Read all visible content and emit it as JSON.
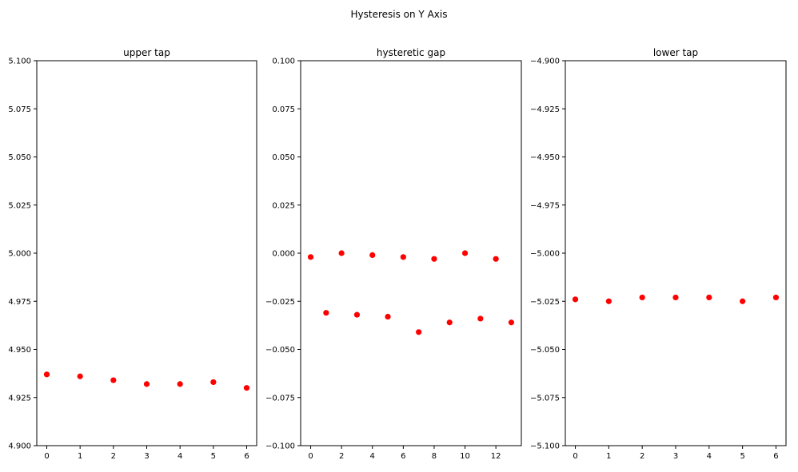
{
  "figure": {
    "suptitle": "Hysteresis on Y Axis"
  },
  "chart_data": [
    {
      "type": "scatter",
      "title": "upper tap",
      "xlabel": "",
      "ylabel": "",
      "marker_color": "#ff0000",
      "xlim": [
        -0.3,
        6.3
      ],
      "ylim": [
        4.9,
        5.1
      ],
      "xticks": [
        0,
        1,
        2,
        3,
        4,
        5,
        6
      ],
      "xtick_labels": [
        "0",
        "1",
        "2",
        "3",
        "4",
        "5",
        "6"
      ],
      "yticks": [
        4.9,
        4.925,
        4.95,
        4.975,
        5.0,
        5.025,
        5.05,
        5.075,
        5.1
      ],
      "ytick_labels": [
        "4.900",
        "4.925",
        "4.950",
        "4.975",
        "5.000",
        "5.025",
        "5.050",
        "5.075",
        "5.100"
      ],
      "grid": false,
      "x": [
        0,
        1,
        2,
        3,
        4,
        5,
        6
      ],
      "y": [
        4.937,
        4.936,
        4.934,
        4.932,
        4.932,
        4.933,
        4.93
      ]
    },
    {
      "type": "scatter",
      "title": "hysteretic gap",
      "xlabel": "",
      "ylabel": "",
      "marker_color": "#ff0000",
      "xlim": [
        -0.65,
        13.65
      ],
      "ylim": [
        -0.1,
        0.1
      ],
      "xticks": [
        0,
        2,
        4,
        6,
        8,
        10,
        12
      ],
      "xtick_labels": [
        "0",
        "2",
        "4",
        "6",
        "8",
        "10",
        "12"
      ],
      "yticks": [
        -0.1,
        -0.075,
        -0.05,
        -0.025,
        0.0,
        0.025,
        0.05,
        0.075,
        0.1
      ],
      "ytick_labels": [
        "−0.100",
        "−0.075",
        "−0.050",
        "−0.025",
        "0.000",
        "0.025",
        "0.050",
        "0.075",
        "0.100"
      ],
      "grid": false,
      "x": [
        0,
        1,
        2,
        3,
        4,
        5,
        6,
        7,
        8,
        9,
        10,
        11,
        12,
        13
      ],
      "y": [
        -0.002,
        -0.031,
        0.0,
        -0.032,
        -0.001,
        -0.033,
        -0.002,
        -0.041,
        -0.003,
        -0.036,
        0.0,
        -0.034,
        -0.003,
        -0.036
      ]
    },
    {
      "type": "scatter",
      "title": "lower tap",
      "xlabel": "",
      "ylabel": "",
      "marker_color": "#ff0000",
      "xlim": [
        -0.3,
        6.3
      ],
      "ylim": [
        -5.1,
        -4.9
      ],
      "xticks": [
        0,
        1,
        2,
        3,
        4,
        5,
        6
      ],
      "xtick_labels": [
        "0",
        "1",
        "2",
        "3",
        "4",
        "5",
        "6"
      ],
      "yticks": [
        -5.1,
        -5.075,
        -5.05,
        -5.025,
        -5.0,
        -4.975,
        -4.95,
        -4.925,
        -4.9
      ],
      "ytick_labels": [
        "−5.100",
        "−5.075",
        "−5.050",
        "−5.025",
        "−5.000",
        "−4.975",
        "−4.950",
        "−4.925",
        "−4.900"
      ],
      "grid": false,
      "x": [
        0,
        1,
        2,
        3,
        4,
        5,
        6
      ],
      "y": [
        -5.024,
        -5.025,
        -5.023,
        -5.023,
        -5.023,
        -5.025,
        -5.023
      ]
    }
  ]
}
